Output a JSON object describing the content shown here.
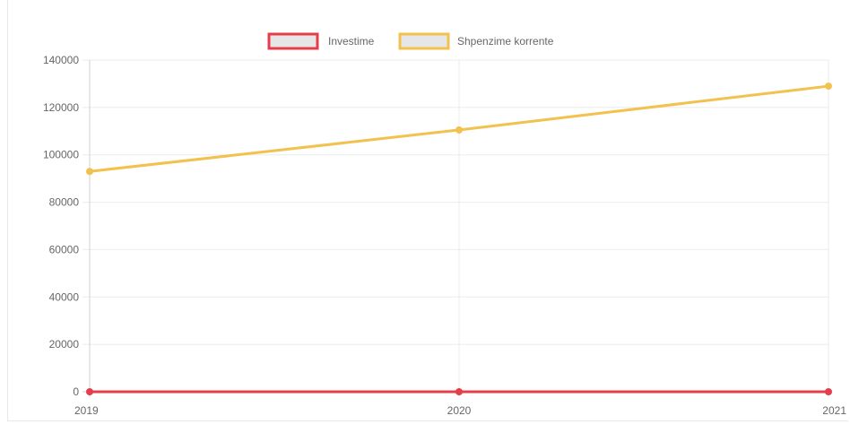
{
  "chart_data": {
    "type": "line",
    "categories": [
      "2019",
      "2020",
      "2021"
    ],
    "series": [
      {
        "name": "Investime",
        "values": [
          0,
          0,
          0
        ],
        "color": "#e53e4a",
        "fill": "#e6e6e6"
      },
      {
        "name": "Shpenzime korrente",
        "values": [
          93000,
          110500,
          129000
        ],
        "color": "#f2c14e",
        "fill": "#e6e6e6"
      }
    ],
    "y_ticks": [
      "0",
      "20000",
      "40000",
      "60000",
      "80000",
      "100000",
      "120000",
      "140000"
    ],
    "ylim": [
      0,
      140000
    ],
    "grid": true,
    "legend_position": "top-center",
    "title": "",
    "xlabel": "",
    "ylabel": ""
  }
}
